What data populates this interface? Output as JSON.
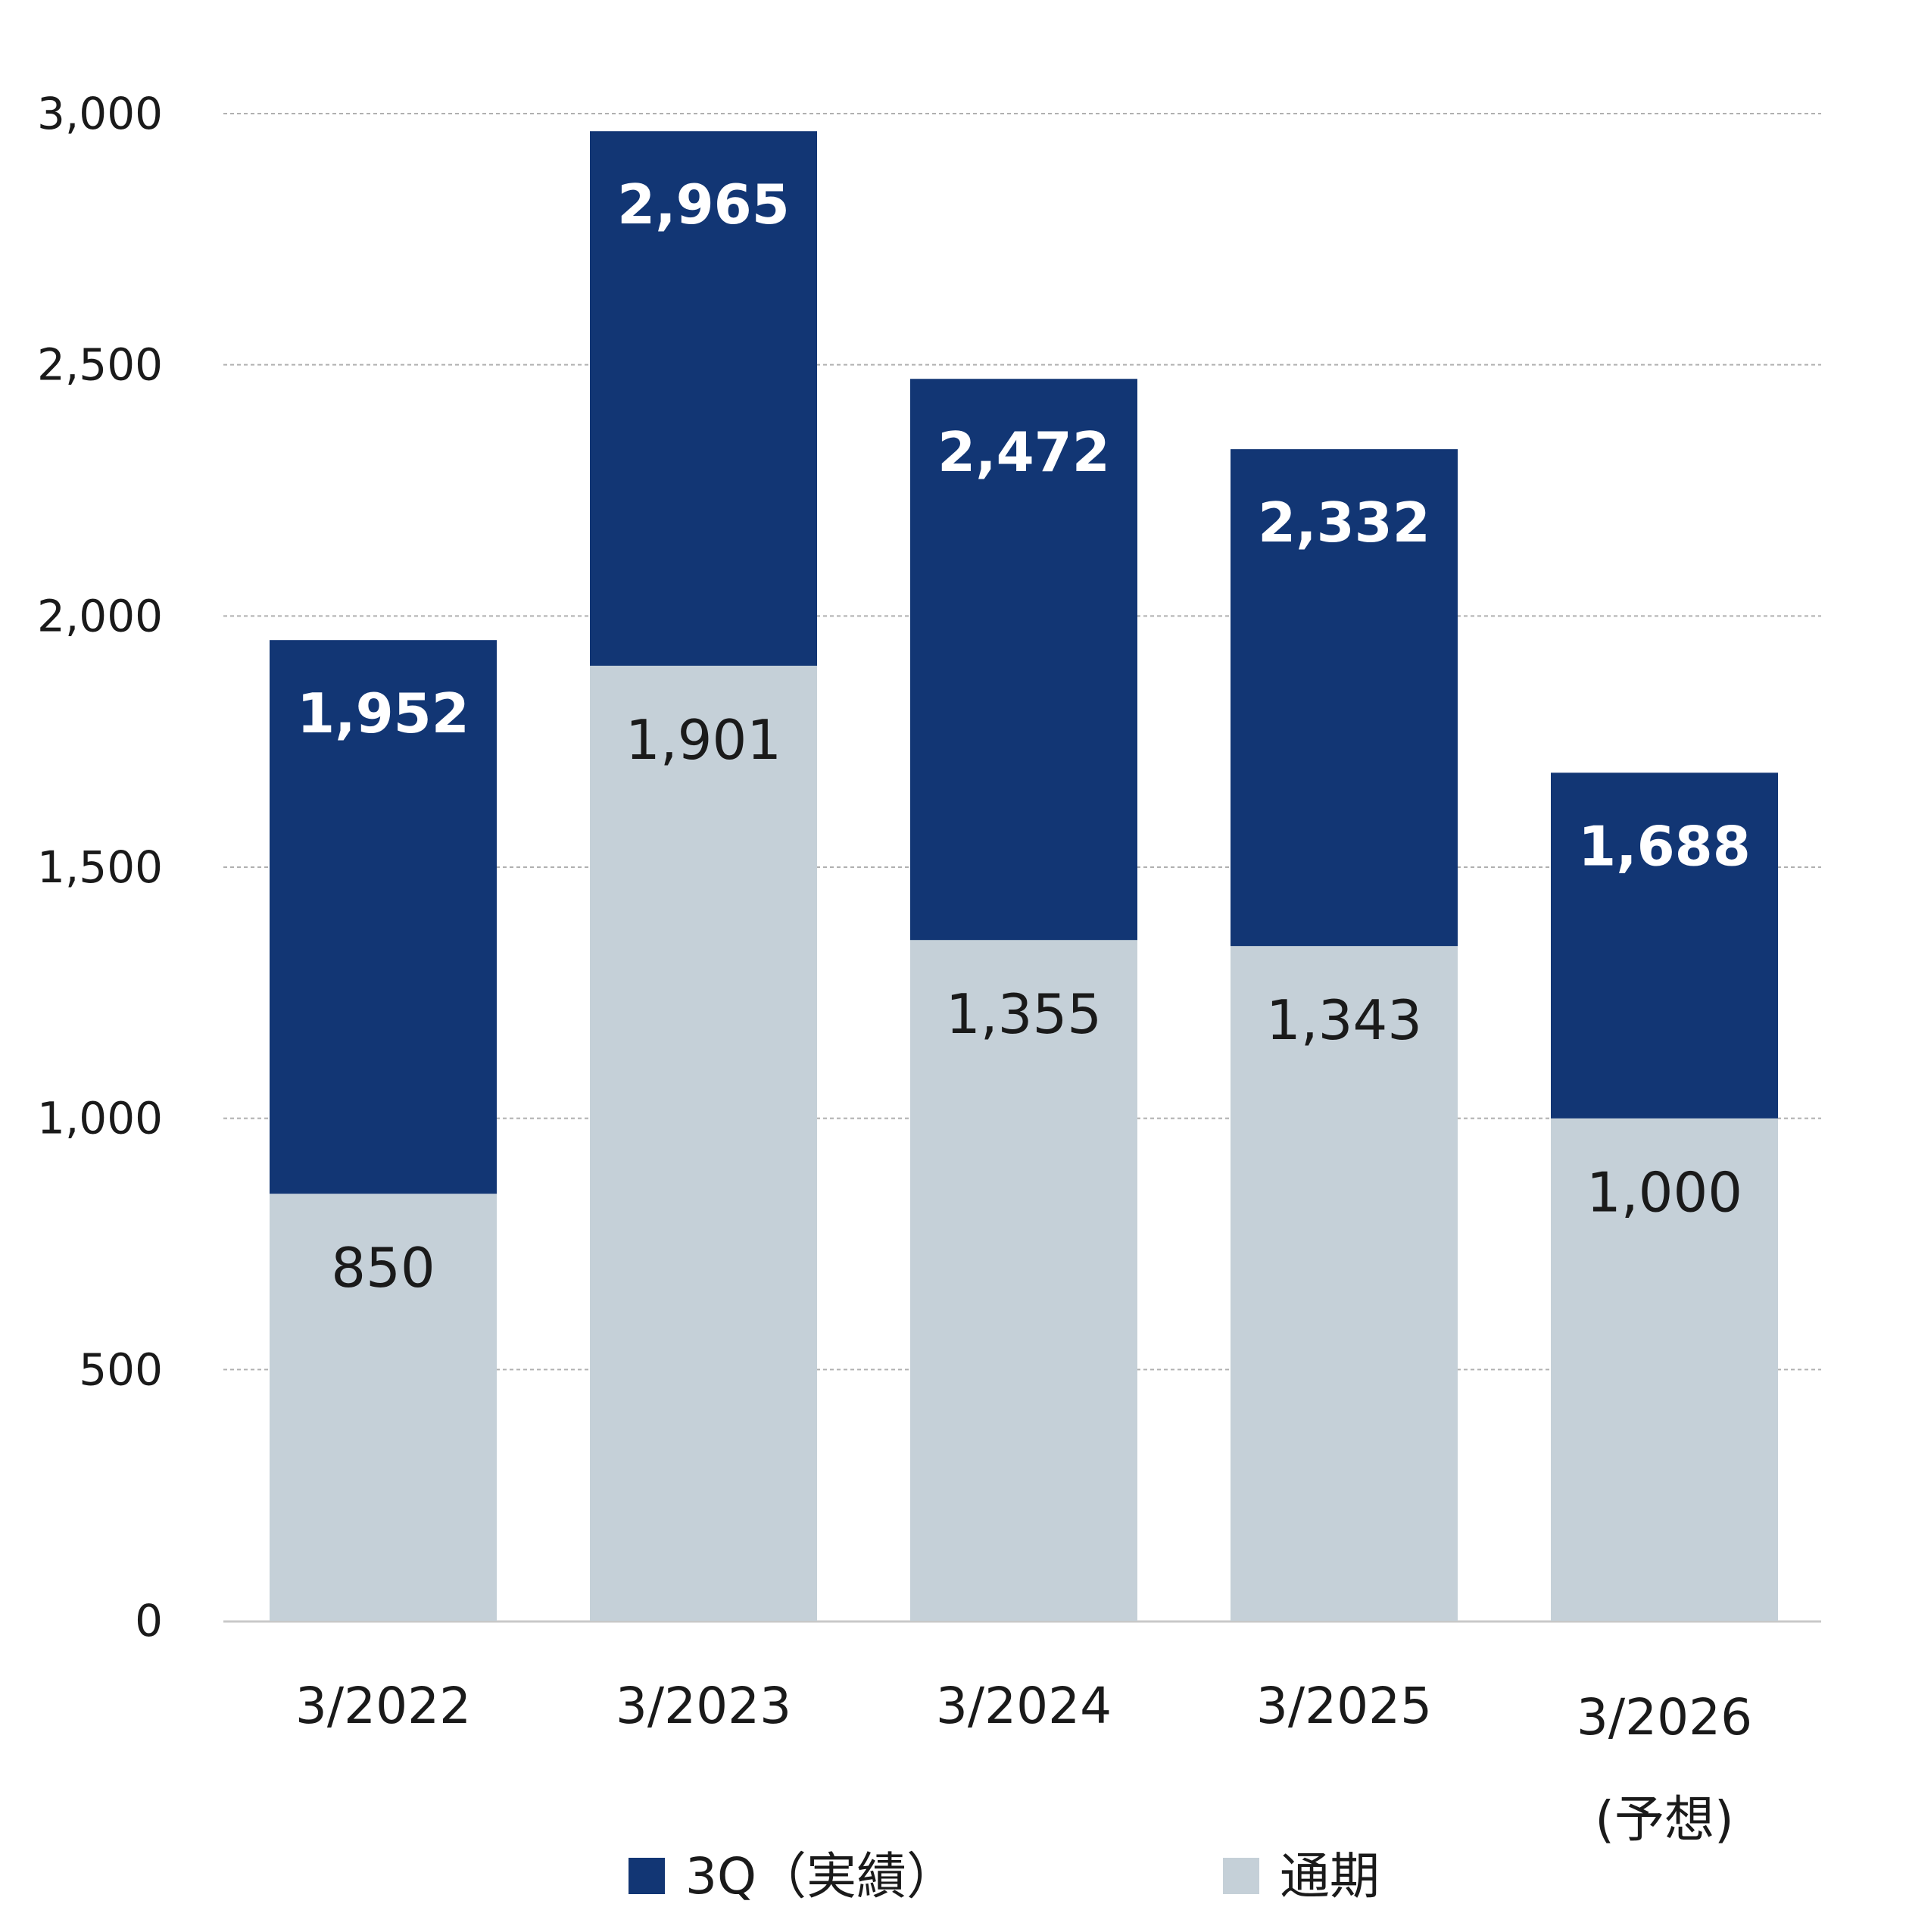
{
  "chart_data": {
    "type": "bar",
    "stacked": false,
    "overlapping": true,
    "categories": [
      "3/2022",
      "3/2023",
      "3/2024",
      "3/2025",
      "3/2026"
    ],
    "category_sublabels": [
      "",
      "",
      "",
      "",
      "(予想)"
    ],
    "series": [
      {
        "name": "3Q（実績）",
        "values": [
          1952,
          2965,
          2472,
          2332,
          1688
        ],
        "labels": [
          "1,952",
          "2,965",
          "2,472",
          "2,332",
          "1,688"
        ],
        "color": "#123674"
      },
      {
        "name": "通期",
        "values": [
          850,
          1901,
          1355,
          1343,
          1000
        ],
        "labels": [
          "850",
          "1,901",
          "1,355",
          "1,343",
          "1,000"
        ],
        "color": "#c5d0d8"
      }
    ],
    "yticks": [
      0,
      500,
      1000,
      1500,
      2000,
      2500,
      3000
    ],
    "ytick_labels": [
      "0",
      "500",
      "1,000",
      "1,500",
      "2,000",
      "2,500",
      "3,000"
    ],
    "ylim": [
      0,
      3000
    ],
    "title": "",
    "xlabel": "",
    "ylabel": "",
    "grid": true,
    "legend_position": "bottom"
  },
  "colors": {
    "grid": "#b0b0b0",
    "axis": "#c8c8c8"
  }
}
